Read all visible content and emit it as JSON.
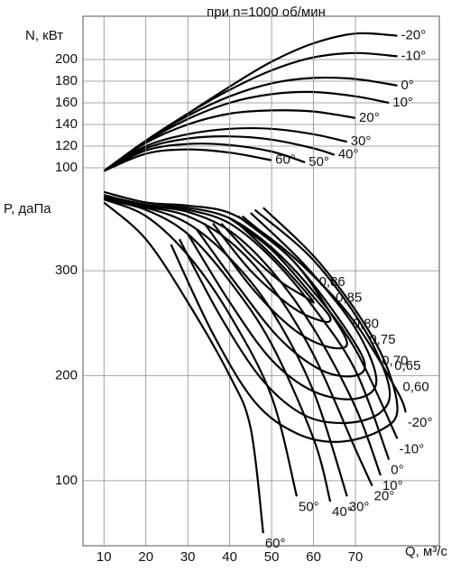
{
  "chart_data": [
    {
      "type": "line",
      "title": "при n=1000 об/мин",
      "ylabel": "N, кВт",
      "xlim": [
        5,
        90
      ],
      "ylim": [
        80,
        240
      ],
      "yticks": [
        100,
        120,
        140,
        160,
        180,
        200
      ],
      "grid": true,
      "series": [
        {
          "name": "-20°",
          "color": "#000",
          "x": [
            10,
            20,
            30,
            40,
            50,
            60,
            70,
            80
          ],
          "values": [
            97,
            125,
            150,
            175,
            198,
            215,
            224,
            222
          ]
        },
        {
          "name": "-10°",
          "color": "#000",
          "x": [
            10,
            20,
            30,
            40,
            50,
            60,
            70,
            80
          ],
          "values": [
            97,
            125,
            150,
            172,
            190,
            202,
            206,
            203
          ]
        },
        {
          "name": "0°",
          "color": "#000",
          "x": [
            10,
            20,
            30,
            40,
            50,
            60,
            70,
            80
          ],
          "values": [
            97,
            125,
            148,
            166,
            178,
            183,
            182,
            176
          ]
        },
        {
          "name": "10°",
          "color": "#000",
          "x": [
            10,
            20,
            30,
            40,
            50,
            60,
            70,
            78
          ],
          "values": [
            97,
            124,
            145,
            160,
            168,
            170,
            166,
            160
          ]
        },
        {
          "name": "20°",
          "color": "#000",
          "x": [
            10,
            20,
            30,
            40,
            50,
            60,
            70
          ],
          "values": [
            97,
            123,
            140,
            150,
            153,
            152,
            146
          ]
        },
        {
          "name": "30°",
          "color": "#000",
          "x": [
            10,
            20,
            30,
            40,
            50,
            60,
            68
          ],
          "values": [
            97,
            120,
            131,
            136,
            136,
            131,
            124
          ]
        },
        {
          "name": "40°",
          "color": "#000",
          "x": [
            10,
            20,
            30,
            40,
            50,
            60,
            65
          ],
          "values": [
            97,
            118,
            127,
            129,
            126,
            118,
            112
          ]
        },
        {
          "name": "50°",
          "color": "#000",
          "x": [
            10,
            20,
            30,
            40,
            50,
            58
          ],
          "values": [
            97,
            116,
            122,
            121,
            115,
            105
          ]
        },
        {
          "name": "60°",
          "color": "#000",
          "x": [
            10,
            20,
            30,
            40,
            50
          ],
          "values": [
            97,
            113,
            117,
            114,
            107
          ]
        }
      ]
    },
    {
      "type": "line",
      "ylabel": "P, даПа",
      "xlabel": "Q, м³/с",
      "xlim": [
        5,
        90
      ],
      "ylim": [
        38,
        380
      ],
      "xticks": [
        10,
        20,
        30,
        40,
        50,
        60,
        70
      ],
      "yticks": [
        100,
        200,
        300
      ],
      "grid": true,
      "series": [
        {
          "name": "-20°",
          "color": "#000",
          "x": [
            10,
            20,
            30,
            40,
            50,
            60,
            70,
            80,
            82
          ],
          "values": [
            375,
            365,
            362,
            355,
            330,
            295,
            250,
            185,
            165
          ]
        },
        {
          "name": "-10°",
          "color": "#000",
          "x": [
            10,
            20,
            30,
            40,
            50,
            60,
            70,
            80
          ],
          "values": [
            372,
            363,
            360,
            350,
            322,
            280,
            225,
            140
          ]
        },
        {
          "name": "0°",
          "color": "#000",
          "x": [
            10,
            20,
            30,
            40,
            50,
            60,
            70,
            78
          ],
          "values": [
            372,
            362,
            358,
            345,
            312,
            265,
            205,
            120
          ]
        },
        {
          "name": "10°",
          "color": "#000",
          "x": [
            10,
            20,
            30,
            40,
            50,
            60,
            70,
            76
          ],
          "values": [
            370,
            362,
            356,
            338,
            300,
            245,
            170,
            105
          ]
        },
        {
          "name": "20°",
          "color": "#000",
          "x": [
            10,
            20,
            30,
            40,
            50,
            60,
            70,
            74
          ],
          "values": [
            370,
            361,
            352,
            328,
            285,
            220,
            130,
            95
          ]
        },
        {
          "name": "30°",
          "color": "#000",
          "x": [
            10,
            20,
            30,
            40,
            50,
            60,
            68
          ],
          "values": [
            368,
            360,
            345,
            312,
            262,
            185,
            85
          ]
        },
        {
          "name": "40°",
          "color": "#000",
          "x": [
            10,
            20,
            30,
            40,
            50,
            60,
            64
          ],
          "values": [
            368,
            358,
            335,
            290,
            230,
            140,
            80
          ]
        },
        {
          "name": "50°",
          "color": "#000",
          "x": [
            10,
            20,
            30,
            40,
            50,
            56
          ],
          "values": [
            368,
            352,
            315,
            258,
            180,
            85
          ]
        },
        {
          "name": "60°",
          "color": "#000",
          "x": [
            10,
            20,
            30,
            40,
            45,
            48
          ],
          "values": [
            365,
            330,
            270,
            200,
            150,
            50
          ]
        }
      ],
      "contours": [
        {
          "name": "0,86",
          "x": [
            38,
            45,
            52,
            58,
            60,
            57,
            50,
            42
          ],
          "values": [
            345,
            315,
            290,
            275,
            270,
            285,
            315,
            345
          ]
        },
        {
          "name": "0,85",
          "x": [
            36,
            45,
            55,
            62,
            64,
            60,
            50,
            40
          ],
          "values": [
            345,
            300,
            265,
            252,
            255,
            275,
            320,
            350
          ]
        },
        {
          "name": "0,80",
          "x": [
            34,
            45,
            55,
            63,
            68,
            64,
            55,
            42
          ],
          "values": [
            345,
            285,
            245,
            228,
            230,
            260,
            310,
            352
          ]
        },
        {
          "name": "0,75",
          "x": [
            32,
            42,
            52,
            62,
            70,
            72,
            65,
            55,
            43
          ],
          "values": [
            340,
            285,
            235,
            205,
            200,
            215,
            260,
            310,
            352
          ]
        },
        {
          "name": "0,70",
          "x": [
            30,
            40,
            50,
            60,
            70,
            75,
            70,
            58,
            45
          ],
          "values": [
            335,
            270,
            215,
            185,
            178,
            195,
            245,
            305,
            355
          ]
        },
        {
          "name": "0,65",
          "x": [
            28,
            38,
            48,
            58,
            68,
            76,
            78,
            72,
            60,
            46
          ],
          "values": [
            330,
            255,
            195,
            162,
            155,
            165,
            190,
            245,
            310,
            358
          ]
        },
        {
          "name": "0,60",
          "x": [
            26,
            36,
            46,
            56,
            66,
            76,
            80,
            75,
            62,
            48
          ],
          "values": [
            325,
            240,
            175,
            145,
            137,
            148,
            170,
            230,
            305,
            360
          ]
        }
      ]
    }
  ]
}
